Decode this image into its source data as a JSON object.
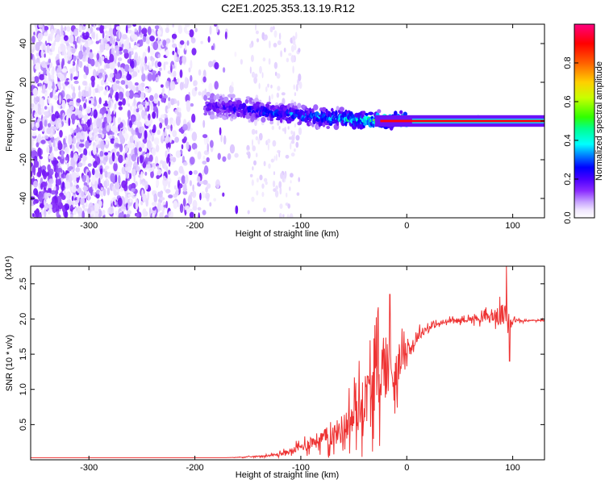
{
  "title": "C2E1.2025.353.13.19.R12",
  "chart_data": [
    {
      "type": "heatmap",
      "xlabel": "Height of straight line (km)",
      "ylabel": "Frequency (Hz)",
      "xlim": [
        -355,
        130
      ],
      "ylim": [
        -50,
        50
      ],
      "xticks": [
        -300,
        -200,
        -100,
        0,
        100
      ],
      "yticks": [
        -40,
        -20,
        0,
        20,
        40
      ],
      "xtick_labels": [
        "-300",
        "-200",
        "-100",
        "0",
        "100"
      ],
      "ytick_labels": [
        "-40",
        "-20",
        "0",
        "20",
        "40"
      ],
      "colorbar": {
        "label": "Normalized spectral amplitude",
        "range": [
          0,
          1
        ],
        "ticks": [
          0.0,
          0.2,
          0.4,
          0.6,
          0.8
        ],
        "tick_labels": [
          "0.0",
          "0.2",
          "0.4",
          "0.6",
          "0.8"
        ],
        "colors": [
          "#ffffff",
          "#e6d6ff",
          "#b488ff",
          "#7a1bf5",
          "#4a00ff",
          "#0000ff",
          "#00b0ff",
          "#00ffff",
          "#00ff80",
          "#40ff00",
          "#d8ff00",
          "#ffd000",
          "#ff6000",
          "#ff0000",
          "#ff0050",
          "#ff0080"
        ]
      },
      "ridge": {
        "x": [
          -190,
          -150,
          -120,
          -100,
          -80,
          -60,
          -40,
          -20,
          0,
          20,
          60,
          100,
          130
        ],
        "freq": [
          8,
          6,
          4,
          3,
          2,
          1,
          0.5,
          0.5,
          0.3,
          0,
          0,
          0,
          0
        ],
        "amplitude": [
          0.25,
          0.3,
          0.35,
          0.38,
          0.4,
          0.45,
          0.5,
          0.6,
          0.7,
          0.8,
          0.85,
          0.85,
          0.8
        ]
      }
    },
    {
      "type": "line",
      "xlabel": "Height of straight line (km)",
      "ylabel": "SNR (10 * v/v)",
      "y_multiplier": "(x10⁴)",
      "xlim": [
        -355,
        130
      ],
      "ylim": [
        0,
        2.75
      ],
      "xticks": [
        -300,
        -200,
        -100,
        0,
        100
      ],
      "yticks": [
        0.5,
        1.0,
        1.5,
        2.0,
        2.5
      ],
      "xtick_labels": [
        "-300",
        "-200",
        "-100",
        "0",
        "100"
      ],
      "ytick_labels": [
        "0.5",
        "1.0",
        "1.5",
        "2.0",
        "2.5"
      ],
      "series": [
        {
          "name": "SNR",
          "color": "#ee3333",
          "x": [
            -355,
            -300,
            -250,
            -200,
            -170,
            -150,
            -130,
            -120,
            -110,
            -100,
            -90,
            -80,
            -70,
            -60,
            -50,
            -40,
            -30,
            -20,
            -15,
            -10,
            -5,
            0,
            5,
            10,
            20,
            30,
            40,
            50,
            60,
            70,
            80,
            90,
            95,
            100,
            110,
            120,
            130
          ],
          "y": [
            0.03,
            0.03,
            0.03,
            0.03,
            0.03,
            0.04,
            0.06,
            0.08,
            0.12,
            0.18,
            0.25,
            0.3,
            0.35,
            0.45,
            0.6,
            0.85,
            1.1,
            1.35,
            1.3,
            1.2,
            1.45,
            1.6,
            1.6,
            1.75,
            1.88,
            1.93,
            1.97,
            1.98,
            2.0,
            2.02,
            2.03,
            2.05,
            2.05,
            1.98,
            1.97,
            1.98,
            1.98
          ],
          "noise": [
            0,
            0,
            0,
            0,
            0,
            0.01,
            0.02,
            0.04,
            0.06,
            0.1,
            0.15,
            0.2,
            0.25,
            0.35,
            0.45,
            0.6,
            0.7,
            0.8,
            0.6,
            0.5,
            0.3,
            0.2,
            0.15,
            0.12,
            0.08,
            0.06,
            0.05,
            0.05,
            0.06,
            0.1,
            0.12,
            0.25,
            0.3,
            0.05,
            0.02,
            0.02,
            0.02
          ],
          "peaks": [
            {
              "x": -16,
              "y": 2.35
            },
            {
              "x": 94,
              "y": 2.75
            },
            {
              "x": 97,
              "y": 1.4
            }
          ]
        }
      ]
    }
  ]
}
